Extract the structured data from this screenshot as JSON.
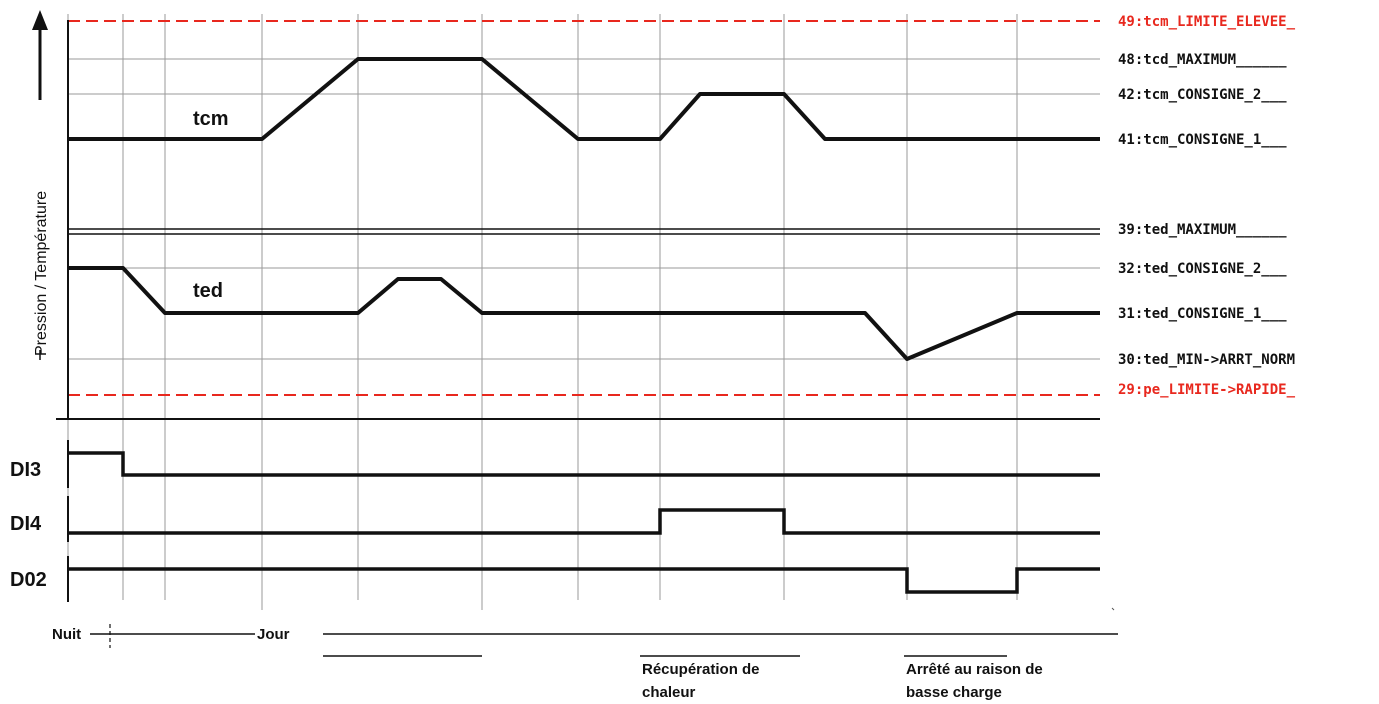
{
  "axis_title": "Pression / Température",
  "traces": {
    "tcm": "tcm",
    "ted": "ted"
  },
  "levels": [
    {
      "text": "49:tcm_LIMITE_ELEVEE_",
      "color": "#e8281e"
    },
    {
      "text": "48:tcd_MAXIMUM______",
      "color": "#111111"
    },
    {
      "text": "42:tcm_CONSIGNE_2___",
      "color": "#111111"
    },
    {
      "text": "41:tcm_CONSIGNE_1___",
      "color": "#111111"
    },
    {
      "text": "39:ted_MAXIMUM______",
      "color": "#111111"
    },
    {
      "text": "32:ted_CONSIGNE_2___",
      "color": "#111111"
    },
    {
      "text": "31:ted_CONSIGNE_1___",
      "color": "#111111"
    },
    {
      "text": "30:ted_MIN->ARRT_NORM",
      "color": "#111111"
    },
    {
      "text": "29:pe_LIMITE->RAPIDE_",
      "color": "#e8281e"
    }
  ],
  "digital": {
    "di3": "DI3",
    "di4": "DI4",
    "do2": "D02"
  },
  "bottom": {
    "nuit": "Nuit",
    "jour": "Jour",
    "recup_1": "Récupération de",
    "recup_2": "chaleur",
    "arret_1": "Arrêté au raison de",
    "arret_2": "basse charge"
  }
}
